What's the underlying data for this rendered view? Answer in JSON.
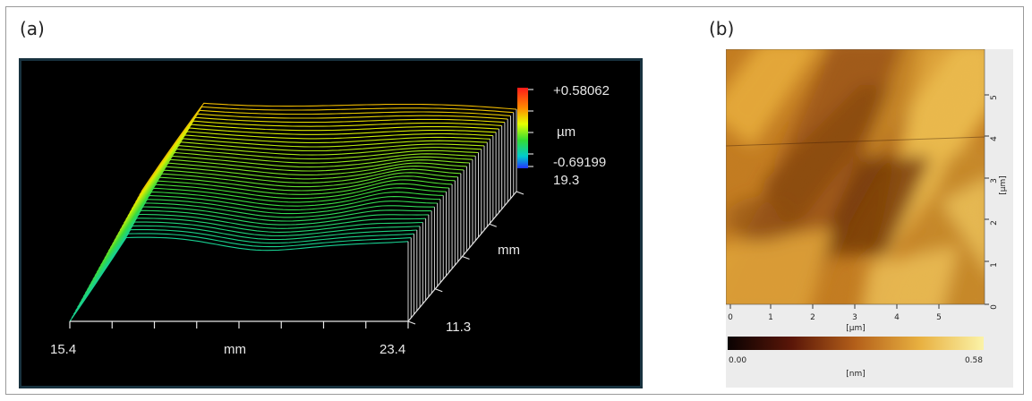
{
  "panels": {
    "a": {
      "label": "(a)",
      "colorbar": {
        "max": "+0.58062",
        "unit": "µm",
        "min": "-0.69199"
      },
      "x_axis": {
        "min": "15.4",
        "label": "mm",
        "max": "23.4"
      },
      "y_axis": {
        "max": "19.3",
        "label": "mm",
        "min": "11.3"
      }
    },
    "b": {
      "label": "(b)",
      "x_axis": {
        "ticks": [
          "0",
          "1",
          "2",
          "3",
          "4",
          "5"
        ],
        "unit": "[µm]"
      },
      "y_axis": {
        "ticks": [
          "0",
          "1",
          "2",
          "3",
          "4",
          "5"
        ],
        "unit": "[µm]"
      },
      "colorbar": {
        "min": "0.00",
        "max": "0.58",
        "unit": "[nm]"
      }
    }
  },
  "colors": {
    "plot_background": "#000000",
    "heat_dark": "#1a0604",
    "heat_mid": "#b86a1a",
    "heat_light": "#f6f0a0"
  }
}
